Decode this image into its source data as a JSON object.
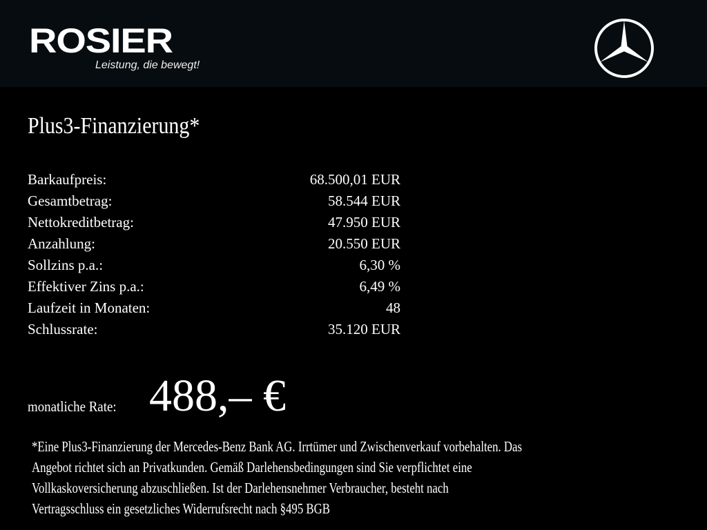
{
  "header": {
    "brand": "ROSIER",
    "tagline": "Leistung, die bewegt!",
    "partner_logo_icon": "mercedes-star-icon",
    "background": "#060c10"
  },
  "offer": {
    "title": "Plus3-Finanzierung*",
    "rows": [
      {
        "label": "Barkaufpreis:",
        "value": "68.500,01 EUR"
      },
      {
        "label": "Gesamtbetrag:",
        "value": "58.544 EUR"
      },
      {
        "label": "Nettokreditbetrag:",
        "value": "47.950 EUR"
      },
      {
        "label": "Anzahlung:",
        "value": "20.550 EUR"
      },
      {
        "label": "Sollzins p.a.:",
        "value": "6,30 %"
      },
      {
        "label": "Effektiver Zins p.a.:",
        "value": "6,49 %"
      },
      {
        "label": "Laufzeit in Monaten:",
        "value": "48"
      },
      {
        "label": "Schlussrate:",
        "value": "35.120 EUR"
      }
    ],
    "monthly_label": "monatliche Rate:",
    "monthly_value": "488,– €"
  },
  "footnote": [
    "*Eine Plus3-Finanzierung der Mercedes-Benz Bank AG. Irrtümer und Zwischenverkauf vorbehalten. Das",
    "Angebot richtet sich an Privatkunden. Gemäß Darlehensbedingungen sind Sie verpflichtet eine",
    "Vollkaskoversicherung abzuschließen. Ist der Darlehensnehmer Verbraucher, besteht nach",
    "Vertragsschluss ein gesetzliches Widerrufsrecht nach §495 BGB"
  ]
}
